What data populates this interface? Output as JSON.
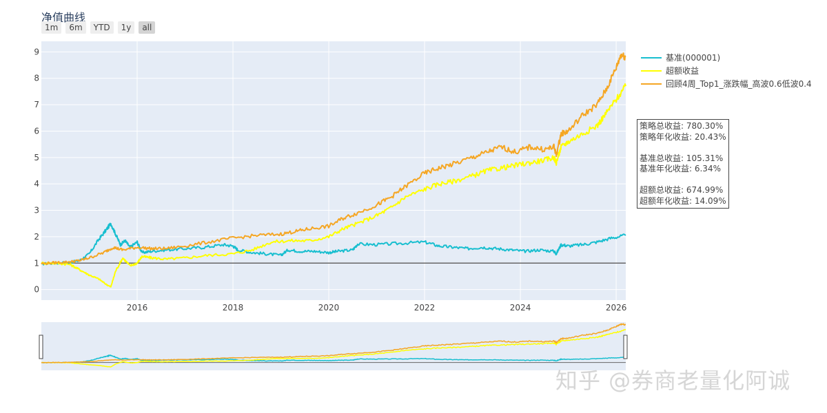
{
  "title": "净值曲线",
  "range_buttons": [
    {
      "label": "1m",
      "active": false
    },
    {
      "label": "6m",
      "active": false
    },
    {
      "label": "YTD",
      "active": false
    },
    {
      "label": "1y",
      "active": false
    },
    {
      "label": "all",
      "active": true
    }
  ],
  "stats": {
    "strategy_total": "策略总收益: 780.30%",
    "strategy_annual": "策略年化收益: 20.43%",
    "benchmark_total": "基准总收益: 105.31%",
    "benchmark_annual": "基准年化收益: 6.34%",
    "excess_total": "超额总收益: 674.99%",
    "excess_annual": "超额年化收益: 14.09%"
  },
  "watermark": "知乎 @券商老量化阿诚",
  "chart_data": {
    "type": "line",
    "xlim": [
      2014.0,
      2026.2
    ],
    "ylim": [
      -0.4,
      9.4
    ],
    "x_ticks": [
      2016,
      2018,
      2020,
      2022,
      2024,
      2026
    ],
    "y_ticks": [
      0,
      1,
      2,
      3,
      4,
      5,
      6,
      7,
      8,
      9
    ],
    "reference_line": 1,
    "legend_position": "top-right",
    "grid": true,
    "series": [
      {
        "name": "基准(000001)",
        "color": "#17becf",
        "x": [
          2014.0,
          2014.3,
          2014.6,
          2014.8,
          2015.0,
          2015.2,
          2015.35,
          2015.45,
          2015.55,
          2015.65,
          2015.75,
          2015.85,
          2016.0,
          2016.1,
          2016.3,
          2016.6,
          2017.0,
          2017.4,
          2017.8,
          2018.0,
          2018.1,
          2018.4,
          2018.7,
          2019.0,
          2019.15,
          2019.4,
          2019.7,
          2020.0,
          2020.2,
          2020.5,
          2020.6,
          2021.0,
          2021.5,
          2022.0,
          2022.3,
          2022.6,
          2022.9,
          2023.2,
          2023.5,
          2023.8,
          2024.1,
          2024.4,
          2024.7,
          2024.75,
          2024.85,
          2025.0,
          2025.3,
          2025.6,
          2025.9,
          2026.2
        ],
        "y": [
          0.97,
          1.0,
          1.03,
          1.1,
          1.35,
          1.9,
          2.25,
          2.5,
          2.1,
          1.7,
          1.85,
          1.6,
          1.8,
          1.4,
          1.45,
          1.5,
          1.55,
          1.6,
          1.7,
          1.65,
          1.5,
          1.4,
          1.35,
          1.3,
          1.5,
          1.45,
          1.45,
          1.4,
          1.45,
          1.5,
          1.72,
          1.7,
          1.75,
          1.8,
          1.65,
          1.6,
          1.55,
          1.6,
          1.55,
          1.5,
          1.45,
          1.5,
          1.45,
          1.35,
          1.7,
          1.65,
          1.7,
          1.8,
          1.95,
          2.05
        ]
      },
      {
        "name": "超额收益",
        "color": "#ffff00",
        "x": [
          2014.0,
          2014.3,
          2014.6,
          2014.8,
          2015.0,
          2015.2,
          2015.35,
          2015.45,
          2015.55,
          2015.7,
          2015.85,
          2016.0,
          2016.1,
          2016.3,
          2016.6,
          2017.0,
          2017.5,
          2018.0,
          2018.4,
          2018.8,
          2019.2,
          2019.6,
          2020.0,
          2020.3,
          2020.6,
          2021.0,
          2021.3,
          2021.6,
          2022.0,
          2022.3,
          2022.6,
          2023.0,
          2023.3,
          2023.6,
          2023.9,
          2024.2,
          2024.5,
          2024.7,
          2024.75,
          2024.85,
          2025.0,
          2025.3,
          2025.6,
          2025.8,
          2026.0,
          2026.2
        ],
        "y": [
          1.0,
          1.0,
          0.95,
          0.75,
          0.55,
          0.4,
          0.2,
          0.1,
          0.7,
          1.2,
          0.9,
          1.0,
          1.25,
          1.2,
          1.15,
          1.2,
          1.3,
          1.35,
          1.5,
          1.8,
          1.85,
          1.85,
          2.0,
          2.3,
          2.5,
          2.8,
          3.1,
          3.5,
          3.8,
          4.0,
          4.1,
          4.3,
          4.5,
          4.6,
          4.7,
          4.8,
          4.9,
          5.0,
          4.8,
          5.4,
          5.6,
          5.9,
          6.2,
          6.7,
          7.2,
          7.7
        ]
      },
      {
        "name": "回顾4周_Top1_涨跌幅_高波0.6低波0.4",
        "color": "#f5a623",
        "x": [
          2014.0,
          2014.3,
          2014.6,
          2014.8,
          2015.0,
          2015.3,
          2015.5,
          2015.7,
          2016.0,
          2016.3,
          2016.6,
          2017.0,
          2017.5,
          2018.0,
          2018.5,
          2019.0,
          2019.3,
          2019.6,
          2020.0,
          2020.3,
          2020.6,
          2021.0,
          2021.3,
          2021.6,
          2022.0,
          2022.3,
          2022.6,
          2023.0,
          2023.3,
          2023.6,
          2023.9,
          2024.2,
          2024.5,
          2024.7,
          2024.75,
          2024.85,
          2025.0,
          2025.3,
          2025.6,
          2025.8,
          2026.0,
          2026.1,
          2026.2
        ],
        "y": [
          0.98,
          1.02,
          1.05,
          1.1,
          1.2,
          1.4,
          1.6,
          1.5,
          1.6,
          1.55,
          1.55,
          1.65,
          1.8,
          1.95,
          2.05,
          2.1,
          2.2,
          2.3,
          2.4,
          2.7,
          2.9,
          3.2,
          3.5,
          3.9,
          4.4,
          4.6,
          4.75,
          5.0,
          5.2,
          5.4,
          5.2,
          5.4,
          5.3,
          5.4,
          5.1,
          5.9,
          6.0,
          6.6,
          7.0,
          7.6,
          8.4,
          8.9,
          8.8
        ]
      }
    ]
  }
}
